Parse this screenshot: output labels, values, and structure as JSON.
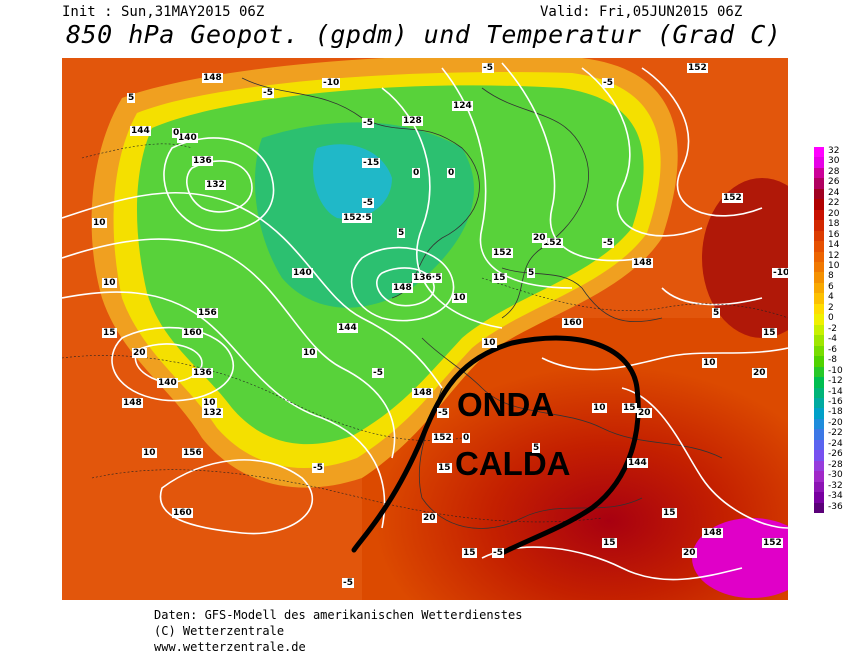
{
  "header": {
    "init": "Init : Sun,31MAY2015 06Z",
    "valid": "Valid: Fri,05JUN2015 06Z",
    "title": "850 hPa Geopot. (gpdm) und Temperatur (Grad C)"
  },
  "annotation": {
    "line1": "ONDA",
    "line2": "CALDA"
  },
  "colorbar": {
    "labels": [
      "32",
      "30",
      "28",
      "26",
      "24",
      "22",
      "20",
      "18",
      "16",
      "14",
      "12",
      "10",
      "8",
      "6",
      "4",
      "2",
      "0",
      "-2",
      "-4",
      "-6",
      "-8",
      "-10",
      "-12",
      "-14",
      "-16",
      "-18",
      "-20",
      "-22",
      "-24",
      "-26",
      "-28",
      "-30",
      "-32",
      "-34",
      "-36"
    ],
    "colors": [
      "#ff00ff",
      "#e600e6",
      "#cc0099",
      "#b00060",
      "#a00020",
      "#b00000",
      "#c81000",
      "#d22800",
      "#dc3c00",
      "#e65000",
      "#ec6400",
      "#f07800",
      "#f49000",
      "#f8a800",
      "#fcc000",
      "#ffdc00",
      "#f0f000",
      "#c8f000",
      "#a0e600",
      "#78dc00",
      "#50d200",
      "#28c828",
      "#00be50",
      "#00b478",
      "#00aaa0",
      "#00a0c8",
      "#1e8cdc",
      "#3c78e6",
      "#5a64f0",
      "#7850f0",
      "#963cdc",
      "#a028c8",
      "#8c14b4",
      "#7800a0",
      "#5a0078"
    ]
  },
  "footer": {
    "line1": "Daten: GFS-Modell des amerikanischen Wetterdienstes",
    "line2": "(C) Wetterzentrale",
    "line3": "www.wetterzentrale.de"
  },
  "map_labels": {
    "geopotential": [
      "152",
      "148",
      "144",
      "140",
      "136",
      "132",
      "128",
      "124",
      "152·5",
      "136·5",
      "148",
      "156",
      "160",
      "144",
      "140",
      "136",
      "132",
      "152",
      "148",
      "156",
      "160",
      "152",
      "148",
      "152",
      "160",
      "148",
      "152",
      "140",
      "144",
      "148",
      "152"
    ],
    "temperature": [
      "5",
      "0",
      "10",
      "15",
      "20",
      "-5",
      "-10",
      "-15",
      "-5",
      "0",
      "5",
      "10",
      "15",
      "20",
      "-5",
      "-10",
      "5",
      "10",
      "15",
      "20",
      "-5",
      "0",
      "5",
      "10",
      "15",
      "20",
      "15",
      "15",
      "15",
      "20",
      "20",
      "15",
      "10",
      "10",
      "10",
      "10",
      "10",
      "5",
      "0",
      "-5",
      "-5",
      "-5",
      "-5",
      "-5",
      "-5",
      "-5"
    ]
  }
}
